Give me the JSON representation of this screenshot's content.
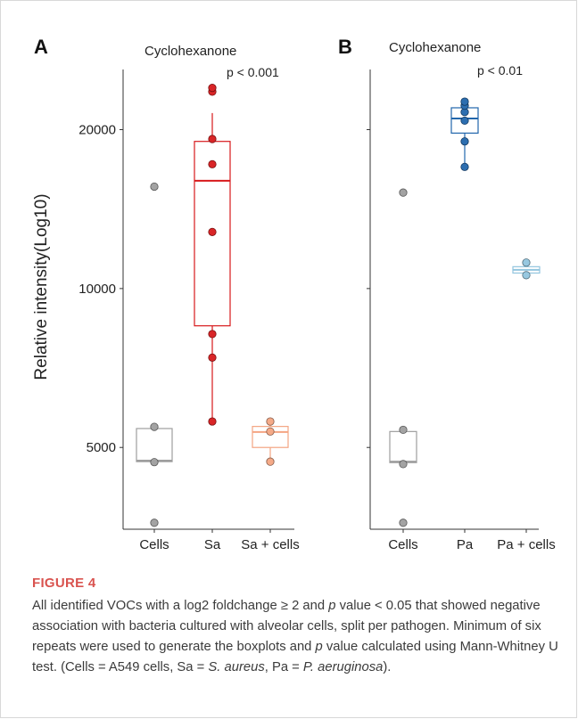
{
  "figure": {
    "label": "FIGURE 4",
    "caption_parts": [
      {
        "t": "All identified VOCs with a log2 foldchange ≥ 2 and ",
        "i": false
      },
      {
        "t": "p",
        "i": true
      },
      {
        "t": " value < 0.05 that showed negative association with bacteria cultured with alveolar cells, split per pathogen. Minimum of six repeats were used to generate the boxplots and ",
        "i": false
      },
      {
        "t": "p",
        "i": true
      },
      {
        "t": " value calculated using Mann-Whitney U test. (Cells = A549 cells, Sa = ",
        "i": false
      },
      {
        "t": "S. aureus",
        "i": true
      },
      {
        "t": ", Pa = ",
        "i": false
      },
      {
        "t": "P. aeruginosa",
        "i": true
      },
      {
        "t": ").",
        "i": false
      }
    ]
  },
  "chart_data": [
    {
      "type": "box",
      "panel": "A",
      "title": "Cyclohexanone",
      "annotation": "p < 0.001",
      "ylabel": "Relative intensity(Log10)",
      "yscale": "log",
      "ylim": [
        3500,
        26000
      ],
      "yticks": [
        5000,
        10000,
        20000
      ],
      "categories": [
        "Cells",
        "Sa",
        "Sa + cells"
      ],
      "groups": [
        {
          "name": "Cells",
          "color": "#9e9e9e",
          "points": [
            3600,
            4690,
            5470,
            15600
          ],
          "box": {
            "q1": 4700,
            "median": 4720,
            "q3": 5430,
            "lower": 4700,
            "upper": 5430
          }
        },
        {
          "name": "Sa",
          "color": "#d7191c",
          "points": [
            5600,
            7400,
            8200,
            12800,
            17200,
            19200,
            23600,
            24000
          ],
          "box": {
            "q1": 8500,
            "median": 16000,
            "q3": 19000,
            "lower": 5600,
            "upper": 21500
          }
        },
        {
          "name": "Sa + cells",
          "color": "#f4a582",
          "points": [
            4700,
            5360,
            5600
          ],
          "box": {
            "q1": 5000,
            "median": 5350,
            "q3": 5480,
            "lower": 4700,
            "upper": 5600
          }
        }
      ]
    },
    {
      "type": "box",
      "panel": "B",
      "title": "Cyclohexanone",
      "annotation": "p < 0.01",
      "ylabel": "",
      "yscale": "log",
      "ylim": [
        3500,
        26000
      ],
      "yticks": [
        5000,
        10000,
        20000
      ],
      "categories": [
        "Cells",
        "Pa",
        "Pa + cells"
      ],
      "groups": [
        {
          "name": "Cells",
          "color": "#9e9e9e",
          "points": [
            3600,
            4650,
            5400,
            15200
          ],
          "box": {
            "q1": 4680,
            "median": 4700,
            "q3": 5360,
            "lower": 4680,
            "upper": 5360
          }
        },
        {
          "name": "Pa",
          "color": "#2166ac",
          "points": [
            17000,
            19000,
            20800,
            21600,
            22200,
            22600
          ],
          "box": {
            "q1": 19700,
            "median": 21000,
            "q3": 22000,
            "lower": 17000,
            "upper": 22600
          }
        },
        {
          "name": "Pa + cells",
          "color": "#92c5de",
          "points": [
            10600,
            11200
          ],
          "box": {
            "q1": 10700,
            "median": 10850,
            "q3": 11000,
            "lower": 10600,
            "upper": 11200
          }
        }
      ]
    }
  ]
}
